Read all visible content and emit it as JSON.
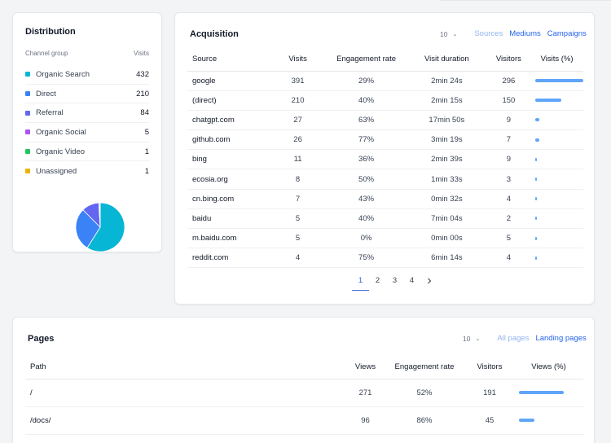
{
  "distribution": {
    "title": "Distribution",
    "col_group": "Channel group",
    "col_visits": "Visits",
    "rows": [
      {
        "label": "Organic Search",
        "value": "432",
        "color": "#06b6d4"
      },
      {
        "label": "Direct",
        "value": "210",
        "color": "#3b82f6"
      },
      {
        "label": "Referral",
        "value": "84",
        "color": "#6366f1"
      },
      {
        "label": "Organic Social",
        "value": "5",
        "color": "#a855f7"
      },
      {
        "label": "Organic Video",
        "value": "1",
        "color": "#22c55e"
      },
      {
        "label": "Unassigned",
        "value": "1",
        "color": "#eab308"
      }
    ]
  },
  "acquisition": {
    "title": "Acquisition",
    "rows_per_page": "10",
    "tabs": [
      "Sources",
      "Mediums",
      "Campaigns"
    ],
    "headers": [
      "Source",
      "Visits",
      "Engagement rate",
      "Visit duration",
      "Visitors",
      "Visits (%)"
    ],
    "rows": [
      {
        "source": "google",
        "visits": "391",
        "engagement": "29%",
        "duration": "2min 24s",
        "visitors": "296",
        "pct": 0.53
      },
      {
        "source": "(direct)",
        "visits": "210",
        "engagement": "40%",
        "duration": "2min 15s",
        "visitors": "150",
        "pct": 0.29
      },
      {
        "source": "chatgpt.com",
        "visits": "27",
        "engagement": "63%",
        "duration": "17min 50s",
        "visitors": "9",
        "pct": 0.04
      },
      {
        "source": "github.com",
        "visits": "26",
        "engagement": "77%",
        "duration": "3min 19s",
        "visitors": "7",
        "pct": 0.04
      },
      {
        "source": "bing",
        "visits": "11",
        "engagement": "36%",
        "duration": "2min 39s",
        "visitors": "9",
        "pct": 0.015
      },
      {
        "source": "ecosia.org",
        "visits": "8",
        "engagement": "50%",
        "duration": "1min 33s",
        "visitors": "3",
        "pct": 0.011
      },
      {
        "source": "cn.bing.com",
        "visits": "7",
        "engagement": "43%",
        "duration": "0min 32s",
        "visitors": "4",
        "pct": 0.01
      },
      {
        "source": "baidu",
        "visits": "5",
        "engagement": "40%",
        "duration": "7min 04s",
        "visitors": "2",
        "pct": 0.007
      },
      {
        "source": "m.baidu.com",
        "visits": "5",
        "engagement": "0%",
        "duration": "0min 00s",
        "visitors": "5",
        "pct": 0.007
      },
      {
        "source": "reddit.com",
        "visits": "4",
        "engagement": "75%",
        "duration": "6min 14s",
        "visitors": "4",
        "pct": 0.005
      }
    ],
    "pages": [
      "1",
      "2",
      "3",
      "4"
    ],
    "next_icon": "chevron-right-icon",
    "active_page": "1"
  },
  "pages_card": {
    "title": "Pages",
    "rows_per_page": "10",
    "tabs": [
      "All pages",
      "Landing pages"
    ],
    "headers": [
      "Path",
      "Views",
      "Engagement rate",
      "Visitors",
      "Views (%)"
    ],
    "rows": [
      {
        "path": "/",
        "views": "271",
        "engagement": "52%",
        "visitors": "191",
        "pct": 0.49
      },
      {
        "path": "/docs/",
        "views": "96",
        "engagement": "86%",
        "visitors": "45",
        "pct": 0.17
      }
    ]
  }
}
